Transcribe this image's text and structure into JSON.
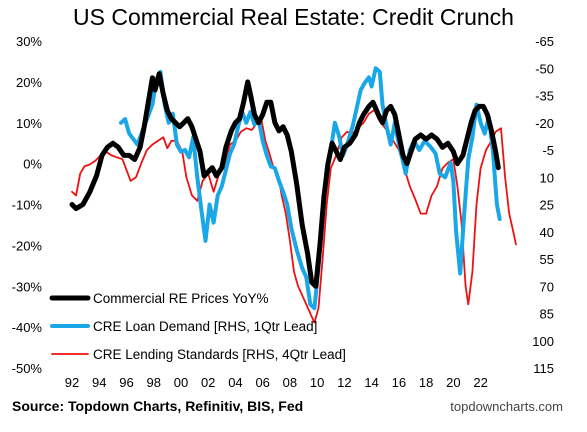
{
  "chart_data": {
    "type": "line",
    "title": "US Commercial Real Estate: Credit Crunch",
    "source": "Source: Topdown Charts, Refinitiv, BIS, Fed",
    "site": "topdowncharts.com",
    "x_ticks": [
      "92",
      "94",
      "96",
      "98",
      "00",
      "02",
      "04",
      "06",
      "08",
      "10",
      "12",
      "14",
      "16",
      "18",
      "20",
      "22"
    ],
    "xlim": [
      1992,
      2024.6
    ],
    "left_axis": {
      "ticks": [
        "30%",
        "20%",
        "10%",
        "0%",
        "-10%",
        "-20%",
        "-30%",
        "-40%",
        "-50%"
      ],
      "ylim": [
        -50,
        30
      ]
    },
    "right_axis": {
      "ticks": [
        "-65",
        "-50",
        "-35",
        "-20",
        "-5",
        "10",
        "25",
        "40",
        "55",
        "70",
        "85",
        "100",
        "115"
      ],
      "ylim": [
        115,
        -65
      ],
      "inverted": true
    },
    "legend_placement": "bottom-left",
    "series": [
      {
        "name": "Commercial RE Prices YoY%",
        "axis": "left",
        "color": "#000000",
        "points": [
          [
            1992.0,
            -10
          ],
          [
            1992.3,
            -11
          ],
          [
            1992.8,
            -10
          ],
          [
            1993.3,
            -7
          ],
          [
            1993.8,
            -3
          ],
          [
            1994.2,
            2
          ],
          [
            1994.6,
            4
          ],
          [
            1995.0,
            5
          ],
          [
            1995.4,
            4
          ],
          [
            1995.8,
            2
          ],
          [
            1996.2,
            2
          ],
          [
            1996.6,
            1
          ],
          [
            1997.0,
            4
          ],
          [
            1997.3,
            9
          ],
          [
            1997.6,
            15
          ],
          [
            1997.9,
            21
          ],
          [
            1998.1,
            18
          ],
          [
            1998.4,
            22
          ],
          [
            1998.7,
            17
          ],
          [
            1999.0,
            13
          ],
          [
            1999.3,
            11
          ],
          [
            1999.6,
            10
          ],
          [
            1999.9,
            9
          ],
          [
            2000.2,
            10
          ],
          [
            2000.5,
            11
          ],
          [
            2000.8,
            9
          ],
          [
            2001.1,
            6
          ],
          [
            2001.4,
            3
          ],
          [
            2001.7,
            -3
          ],
          [
            2002.0,
            -2
          ],
          [
            2002.3,
            -1
          ],
          [
            2002.6,
            -3
          ],
          [
            2003.0,
            -1
          ],
          [
            2003.3,
            4
          ],
          [
            2003.7,
            8
          ],
          [
            2004.0,
            10
          ],
          [
            2004.3,
            11
          ],
          [
            2004.6,
            15
          ],
          [
            2004.9,
            20
          ],
          [
            2005.1,
            17
          ],
          [
            2005.4,
            12
          ],
          [
            2005.7,
            10
          ],
          [
            2006.0,
            12
          ],
          [
            2006.3,
            15
          ],
          [
            2006.6,
            15
          ],
          [
            2006.9,
            10
          ],
          [
            2007.2,
            8
          ],
          [
            2007.5,
            9
          ],
          [
            2007.8,
            7
          ],
          [
            2008.1,
            3
          ],
          [
            2008.5,
            -5
          ],
          [
            2008.9,
            -15
          ],
          [
            2009.3,
            -22
          ],
          [
            2009.6,
            -29
          ],
          [
            2009.9,
            -30
          ],
          [
            2010.2,
            -20
          ],
          [
            2010.5,
            -8
          ],
          [
            2010.8,
            0
          ],
          [
            2011.1,
            5
          ],
          [
            2011.4,
            3
          ],
          [
            2011.7,
            1
          ],
          [
            2012.0,
            4
          ],
          [
            2012.4,
            5
          ],
          [
            2012.8,
            7
          ],
          [
            2013.1,
            10
          ],
          [
            2013.4,
            12
          ],
          [
            2013.8,
            14
          ],
          [
            2014.1,
            15
          ],
          [
            2014.5,
            12
          ],
          [
            2014.8,
            10
          ],
          [
            2015.1,
            13
          ],
          [
            2015.4,
            14
          ],
          [
            2015.7,
            12
          ],
          [
            2016.0,
            7
          ],
          [
            2016.3,
            2
          ],
          [
            2016.6,
            0
          ],
          [
            2016.9,
            3
          ],
          [
            2017.2,
            6
          ],
          [
            2017.6,
            7
          ],
          [
            2018.0,
            6
          ],
          [
            2018.4,
            7
          ],
          [
            2018.8,
            6
          ],
          [
            2019.2,
            4
          ],
          [
            2019.6,
            5
          ],
          [
            2020.0,
            3
          ],
          [
            2020.3,
            0
          ],
          [
            2020.7,
            2
          ],
          [
            2021.0,
            6
          ],
          [
            2021.3,
            10
          ],
          [
            2021.6,
            13
          ],
          [
            2021.9,
            14
          ],
          [
            2022.2,
            14
          ],
          [
            2022.5,
            12
          ],
          [
            2022.8,
            8
          ],
          [
            2023.1,
            3
          ],
          [
            2023.3,
            -1
          ]
        ]
      },
      {
        "name": "CRE Loan Demand [RHS, 1Qtr Lead]",
        "axis": "right",
        "color": "#1aa7e8",
        "points": [
          [
            1995.6,
            -20
          ],
          [
            1995.9,
            -22
          ],
          [
            1996.2,
            -14
          ],
          [
            1996.5,
            -11
          ],
          [
            1996.8,
            -8
          ],
          [
            1997.0,
            -12
          ],
          [
            1997.3,
            -18
          ],
          [
            1997.6,
            -24
          ],
          [
            1997.9,
            -30
          ],
          [
            1998.2,
            -44
          ],
          [
            1998.5,
            -48
          ],
          [
            1998.8,
            -30
          ],
          [
            1999.1,
            -20
          ],
          [
            1999.4,
            -25
          ],
          [
            1999.7,
            -8
          ],
          [
            2000.0,
            -4
          ],
          [
            2000.3,
            -5
          ],
          [
            2000.6,
            -1
          ],
          [
            2000.9,
            -12
          ],
          [
            2001.2,
            10
          ],
          [
            2001.5,
            28
          ],
          [
            2001.8,
            45
          ],
          [
            2002.1,
            25
          ],
          [
            2002.4,
            35
          ],
          [
            2002.7,
            20
          ],
          [
            2003.0,
            15
          ],
          [
            2003.3,
            6
          ],
          [
            2003.6,
            -3
          ],
          [
            2003.9,
            -8
          ],
          [
            2004.2,
            -18
          ],
          [
            2004.5,
            -26
          ],
          [
            2004.8,
            -20
          ],
          [
            2005.1,
            -26
          ],
          [
            2005.4,
            -19
          ],
          [
            2005.7,
            -22
          ],
          [
            2006.0,
            -10
          ],
          [
            2006.3,
            -2
          ],
          [
            2006.6,
            4
          ],
          [
            2006.9,
            5
          ],
          [
            2007.2,
            12
          ],
          [
            2007.5,
            18
          ],
          [
            2007.8,
            25
          ],
          [
            2008.1,
            38
          ],
          [
            2008.5,
            50
          ],
          [
            2008.9,
            60
          ],
          [
            2009.2,
            65
          ],
          [
            2009.5,
            80
          ],
          [
            2009.8,
            82
          ],
          [
            2010.1,
            60
          ],
          [
            2010.4,
            30
          ],
          [
            2010.7,
            5
          ],
          [
            2011.0,
            -5
          ],
          [
            2011.3,
            -20
          ],
          [
            2011.6,
            -13
          ],
          [
            2011.9,
            -2
          ],
          [
            2012.2,
            -8
          ],
          [
            2012.6,
            -18
          ],
          [
            2012.9,
            -28
          ],
          [
            2013.2,
            -38
          ],
          [
            2013.5,
            -42
          ],
          [
            2013.8,
            -45
          ],
          [
            2014.0,
            -40
          ],
          [
            2014.3,
            -50
          ],
          [
            2014.6,
            -48
          ],
          [
            2014.8,
            -30
          ],
          [
            2015.1,
            -18
          ],
          [
            2015.4,
            -8
          ],
          [
            2015.7,
            -20
          ],
          [
            2015.9,
            -12
          ],
          [
            2016.2,
            -2
          ],
          [
            2016.5,
            8
          ],
          [
            2016.8,
            -5
          ],
          [
            2017.1,
            -10
          ],
          [
            2017.5,
            -5
          ],
          [
            2017.9,
            -10
          ],
          [
            2018.3,
            -7
          ],
          [
            2018.7,
            -3
          ],
          [
            2019.0,
            8
          ],
          [
            2019.4,
            10
          ],
          [
            2019.8,
            2
          ],
          [
            2020.0,
            12
          ],
          [
            2020.2,
            40
          ],
          [
            2020.5,
            63
          ],
          [
            2020.8,
            30
          ],
          [
            2021.1,
            0
          ],
          [
            2021.4,
            -12
          ],
          [
            2021.7,
            -30
          ],
          [
            2022.0,
            -20
          ],
          [
            2022.3,
            -14
          ],
          [
            2022.6,
            -23
          ],
          [
            2022.9,
            -5
          ],
          [
            2023.2,
            25
          ],
          [
            2023.4,
            33
          ]
        ]
      },
      {
        "name": "CRE Lending Standards [RHS, 4Qtr Lead]",
        "axis": "right",
        "color": "#ee1111",
        "points": [
          [
            1992.0,
            18
          ],
          [
            1992.3,
            20
          ],
          [
            1992.6,
            8
          ],
          [
            1992.9,
            4
          ],
          [
            1993.3,
            3
          ],
          [
            1993.7,
            1
          ],
          [
            1994.1,
            -2
          ],
          [
            1994.5,
            -4
          ],
          [
            1994.9,
            -2
          ],
          [
            1995.3,
            -1
          ],
          [
            1995.7,
            0
          ],
          [
            1996.0,
            6
          ],
          [
            1996.3,
            12
          ],
          [
            1996.7,
            10
          ],
          [
            1997.1,
            2
          ],
          [
            1997.5,
            -5
          ],
          [
            1997.9,
            -8
          ],
          [
            1998.3,
            -10
          ],
          [
            1998.7,
            -12
          ],
          [
            1999.0,
            -6
          ],
          [
            1999.3,
            -10
          ],
          [
            1999.7,
            -10
          ],
          [
            2000.1,
            -4
          ],
          [
            2000.4,
            10
          ],
          [
            2000.8,
            20
          ],
          [
            2001.2,
            23
          ],
          [
            2001.6,
            12
          ],
          [
            2002.0,
            8
          ],
          [
            2002.4,
            18
          ],
          [
            2002.8,
            8
          ],
          [
            2003.2,
            4
          ],
          [
            2003.6,
            -8
          ],
          [
            2004.0,
            -10
          ],
          [
            2004.4,
            -15
          ],
          [
            2004.8,
            -17
          ],
          [
            2005.2,
            -16
          ],
          [
            2005.6,
            -20
          ],
          [
            2005.9,
            -22
          ],
          [
            2006.2,
            -10
          ],
          [
            2006.5,
            -3
          ],
          [
            2006.8,
            5
          ],
          [
            2007.1,
            8
          ],
          [
            2007.4,
            20
          ],
          [
            2007.7,
            30
          ],
          [
            2008.0,
            45
          ],
          [
            2008.3,
            62
          ],
          [
            2008.6,
            70
          ],
          [
            2008.9,
            75
          ],
          [
            2009.2,
            80
          ],
          [
            2009.5,
            85
          ],
          [
            2009.8,
            90
          ],
          [
            2010.1,
            82
          ],
          [
            2010.4,
            55
          ],
          [
            2010.7,
            25
          ],
          [
            2011.0,
            5
          ],
          [
            2011.4,
            -2
          ],
          [
            2011.8,
            -12
          ],
          [
            2012.2,
            -15
          ],
          [
            2012.6,
            -14
          ],
          [
            2013.0,
            -17
          ],
          [
            2013.4,
            -20
          ],
          [
            2013.8,
            -25
          ],
          [
            2014.2,
            -27
          ],
          [
            2014.5,
            -22
          ],
          [
            2014.9,
            -18
          ],
          [
            2015.2,
            -15
          ],
          [
            2015.6,
            -10
          ],
          [
            2016.0,
            -5
          ],
          [
            2016.4,
            5
          ],
          [
            2016.8,
            15
          ],
          [
            2017.2,
            22
          ],
          [
            2017.6,
            30
          ],
          [
            2018.0,
            30
          ],
          [
            2018.4,
            20
          ],
          [
            2018.8,
            15
          ],
          [
            2019.2,
            5
          ],
          [
            2019.6,
            2
          ],
          [
            2020.0,
            0
          ],
          [
            2020.3,
            15
          ],
          [
            2020.6,
            35
          ],
          [
            2020.9,
            70
          ],
          [
            2021.1,
            80
          ],
          [
            2021.4,
            62
          ],
          [
            2021.7,
            25
          ],
          [
            2022.0,
            5
          ],
          [
            2022.4,
            -5
          ],
          [
            2022.8,
            -10
          ],
          [
            2023.1,
            -15
          ],
          [
            2023.5,
            -17
          ],
          [
            2023.8,
            10
          ],
          [
            2024.1,
            30
          ],
          [
            2024.4,
            40
          ],
          [
            2024.6,
            47
          ]
        ]
      }
    ]
  }
}
